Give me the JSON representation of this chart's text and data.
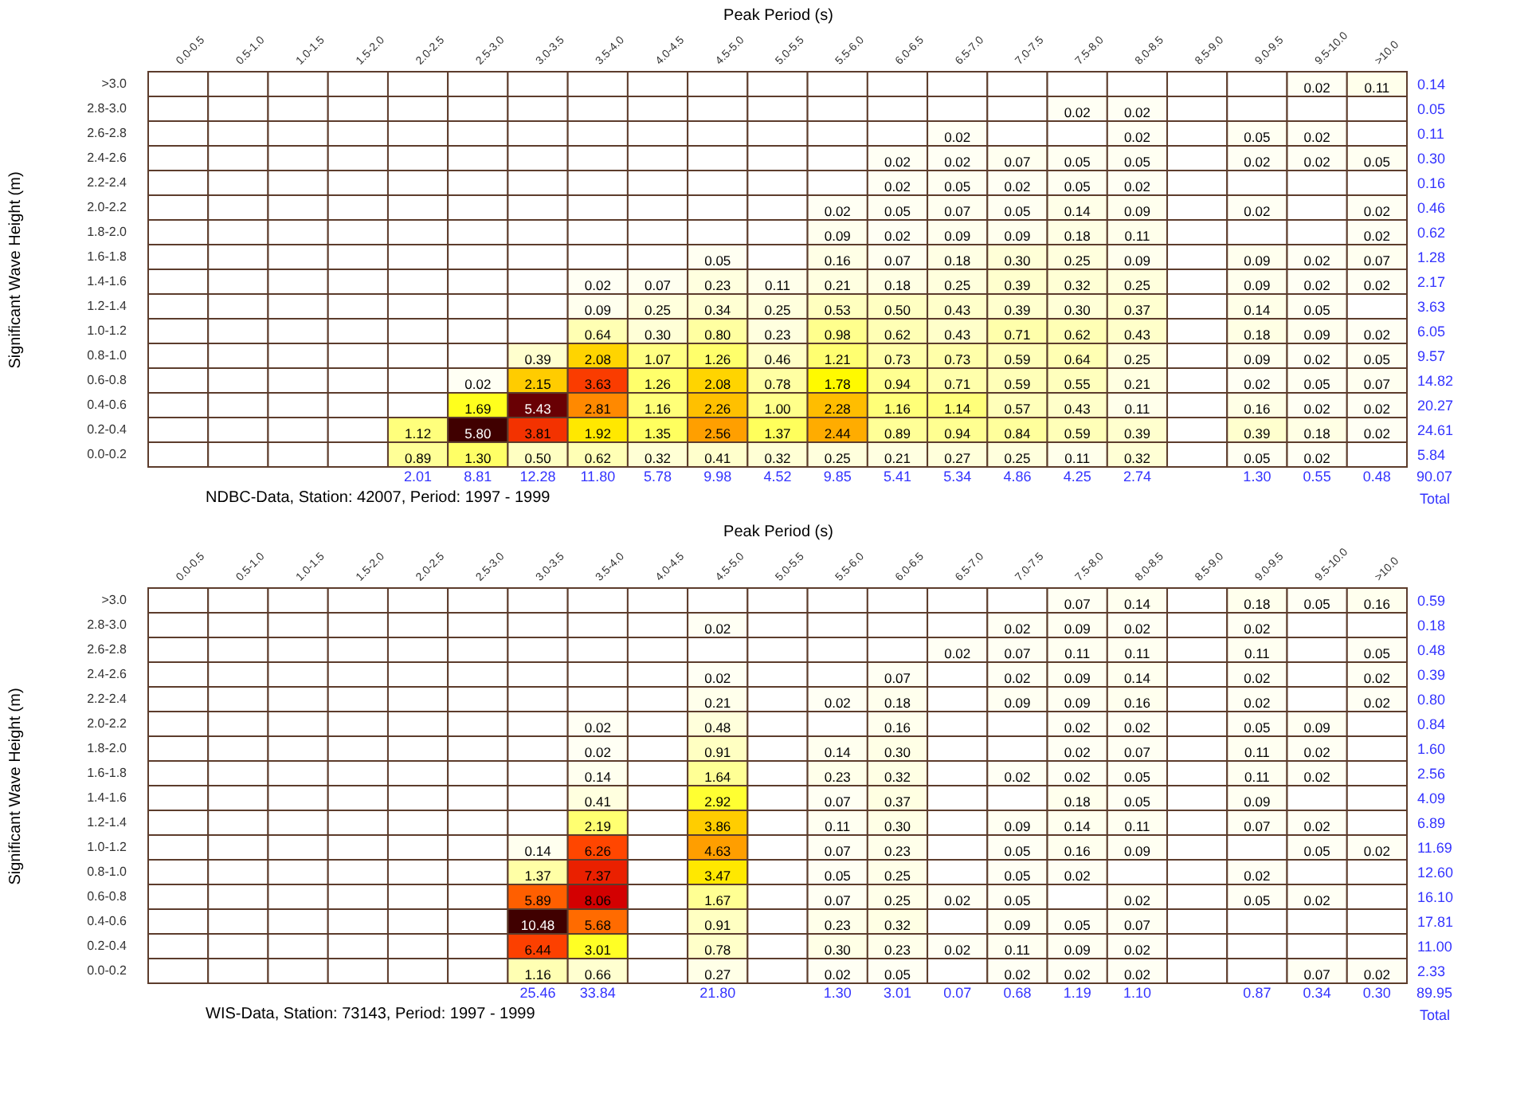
{
  "chart_data": [
    {
      "type": "heatmap",
      "xlabel": "Peak Period (s)",
      "ylabel": "Significant Wave Height (m)",
      "data_labels": true,
      "categories": [
        "0.0-0.5",
        "0.5-1.0",
        "1.0-1.5",
        "1.5-2.0",
        "2.0-2.5",
        "2.5-3.0",
        "3.0-3.5",
        "3.5-4.0",
        "4.0-4.5",
        "4.5-5.0",
        "5.0-5.5",
        "5.5-6.0",
        "6.0-6.5",
        "6.5-7.0",
        "7.0-7.5",
        "7.5-8.0",
        "8.0-8.5",
        "8.5-9.0",
        "9.0-9.5",
        "9.5-10.0",
        ">10.0"
      ],
      "y_categories": [
        ">3.0",
        "2.8-3.0",
        "2.6-2.8",
        "2.4-2.6",
        "2.2-2.4",
        "2.0-2.2",
        "1.8-2.0",
        "1.6-1.8",
        "1.4-1.6",
        "1.2-1.4",
        "1.0-1.2",
        "0.8-1.0",
        "0.6-0.8",
        "0.4-0.6",
        "0.2-0.4",
        "0.0-0.2"
      ],
      "y2_categories": [
        "0.14",
        "0.05",
        "0.11",
        "0.30",
        "0.16",
        "0.46",
        "0.62",
        "1.28",
        "2.17",
        "3.63",
        "6.05",
        "9.57",
        "14.82",
        "20.27",
        "24.61",
        "5.84"
      ],
      "cells": [
        [
          null,
          null,
          null,
          null,
          null,
          null,
          null,
          null,
          null,
          null,
          null,
          null,
          null,
          null,
          null,
          null,
          null,
          null,
          null,
          0.02,
          0.11
        ],
        [
          null,
          null,
          null,
          null,
          null,
          null,
          null,
          null,
          null,
          null,
          null,
          null,
          null,
          null,
          null,
          0.02,
          0.02,
          null,
          null,
          null,
          null
        ],
        [
          null,
          null,
          null,
          null,
          null,
          null,
          null,
          null,
          null,
          null,
          null,
          null,
          null,
          0.02,
          null,
          null,
          0.02,
          null,
          0.05,
          0.02,
          null
        ],
        [
          null,
          null,
          null,
          null,
          null,
          null,
          null,
          null,
          null,
          null,
          null,
          null,
          0.02,
          0.02,
          0.07,
          0.05,
          0.05,
          null,
          0.02,
          0.02,
          0.05
        ],
        [
          null,
          null,
          null,
          null,
          null,
          null,
          null,
          null,
          null,
          null,
          null,
          null,
          0.02,
          0.05,
          0.02,
          0.05,
          0.02,
          null,
          null,
          null,
          null
        ],
        [
          null,
          null,
          null,
          null,
          null,
          null,
          null,
          null,
          null,
          null,
          null,
          0.02,
          0.05,
          0.07,
          0.05,
          0.14,
          0.09,
          null,
          0.02,
          null,
          0.02
        ],
        [
          null,
          null,
          null,
          null,
          null,
          null,
          null,
          null,
          null,
          null,
          null,
          0.09,
          0.02,
          0.09,
          0.09,
          0.18,
          0.11,
          null,
          null,
          null,
          0.02
        ],
        [
          null,
          null,
          null,
          null,
          null,
          null,
          null,
          null,
          null,
          0.05,
          null,
          0.16,
          0.07,
          0.18,
          0.3,
          0.25,
          0.09,
          null,
          0.09,
          0.02,
          0.07
        ],
        [
          null,
          null,
          null,
          null,
          null,
          null,
          null,
          0.02,
          0.07,
          0.23,
          0.11,
          0.21,
          0.18,
          0.25,
          0.39,
          0.32,
          0.25,
          null,
          0.09,
          0.02,
          0.02
        ],
        [
          null,
          null,
          null,
          null,
          null,
          null,
          null,
          0.09,
          0.25,
          0.34,
          0.25,
          0.53,
          0.5,
          0.43,
          0.39,
          0.3,
          0.37,
          null,
          0.14,
          0.05,
          null
        ],
        [
          null,
          null,
          null,
          null,
          null,
          null,
          null,
          0.64,
          0.3,
          0.8,
          0.23,
          0.98,
          0.62,
          0.43,
          0.71,
          0.62,
          0.43,
          null,
          0.18,
          0.09,
          0.02
        ],
        [
          null,
          null,
          null,
          null,
          null,
          null,
          0.39,
          2.08,
          1.07,
          1.26,
          0.46,
          1.21,
          0.73,
          0.73,
          0.59,
          0.64,
          0.25,
          null,
          0.09,
          0.02,
          0.05
        ],
        [
          null,
          null,
          null,
          null,
          null,
          0.02,
          2.15,
          3.63,
          1.26,
          2.08,
          0.78,
          1.78,
          0.94,
          0.71,
          0.59,
          0.55,
          0.21,
          null,
          0.02,
          0.05,
          0.07
        ],
        [
          null,
          null,
          null,
          null,
          null,
          1.69,
          5.43,
          2.81,
          1.16,
          2.26,
          1.0,
          2.28,
          1.16,
          1.14,
          0.57,
          0.43,
          0.11,
          null,
          0.16,
          0.02,
          0.02
        ],
        [
          null,
          null,
          null,
          null,
          1.12,
          5.8,
          3.81,
          1.92,
          1.35,
          2.56,
          1.37,
          2.44,
          0.89,
          0.94,
          0.84,
          0.59,
          0.39,
          null,
          0.39,
          0.18,
          0.02
        ],
        [
          null,
          null,
          null,
          null,
          0.89,
          1.3,
          0.5,
          0.62,
          0.32,
          0.41,
          0.32,
          0.25,
          0.21,
          0.27,
          0.25,
          0.11,
          0.32,
          null,
          0.05,
          0.02,
          null
        ]
      ],
      "cell_labels": [
        [
          null,
          null,
          null,
          null,
          null,
          null,
          null,
          null,
          null,
          null,
          null,
          null,
          null,
          null,
          null,
          null,
          null,
          null,
          null,
          "0.02",
          "0.11"
        ],
        [
          null,
          null,
          null,
          null,
          null,
          null,
          null,
          null,
          null,
          null,
          null,
          null,
          null,
          null,
          null,
          "0.02",
          "0.02",
          null,
          null,
          null,
          null
        ],
        [
          null,
          null,
          null,
          null,
          null,
          null,
          null,
          null,
          null,
          null,
          null,
          null,
          null,
          "0.02",
          null,
          null,
          "0.02",
          null,
          "0.05",
          "0.02",
          null
        ],
        [
          null,
          null,
          null,
          null,
          null,
          null,
          null,
          null,
          null,
          null,
          null,
          null,
          "0.02",
          "0.02",
          "0.07",
          "0.05",
          "0.05",
          null,
          "0.02",
          "0.02",
          "0.05"
        ],
        [
          null,
          null,
          null,
          null,
          null,
          null,
          null,
          null,
          null,
          null,
          null,
          null,
          "0.02",
          "0.05",
          "0.02",
          "0.05",
          "0.02",
          null,
          null,
          null,
          null
        ],
        [
          null,
          null,
          null,
          null,
          null,
          null,
          null,
          null,
          null,
          null,
          null,
          "0.02",
          "0.05",
          "0.07",
          "0.05",
          "0.14",
          "0.09",
          null,
          "0.02",
          null,
          "0.02"
        ],
        [
          null,
          null,
          null,
          null,
          null,
          null,
          null,
          null,
          null,
          null,
          null,
          "0.09",
          "0.02",
          "0.09",
          "0.09",
          "0.18",
          "0.11",
          null,
          null,
          null,
          "0.02"
        ],
        [
          null,
          null,
          null,
          null,
          null,
          null,
          null,
          null,
          null,
          "0.05",
          null,
          "0.16",
          "0.07",
          "0.18",
          "0.30",
          "0.25",
          "0.09",
          null,
          "0.09",
          "0.02",
          "0.07"
        ],
        [
          null,
          null,
          null,
          null,
          null,
          null,
          null,
          "0.02",
          "0.07",
          "0.23",
          "0.11",
          "0.21",
          "0.18",
          "0.25",
          "0.39",
          "0.32",
          "0.25",
          null,
          "0.09",
          "0.02",
          "0.02"
        ],
        [
          null,
          null,
          null,
          null,
          null,
          null,
          null,
          "0.09",
          "0.25",
          "0.34",
          "0.25",
          "0.53",
          "0.50",
          "0.43",
          "0.39",
          "0.30",
          "0.37",
          null,
          "0.14",
          "0.05",
          null
        ],
        [
          null,
          null,
          null,
          null,
          null,
          null,
          null,
          "0.64",
          "0.30",
          "0.80",
          "0.23",
          "0.98",
          "0.62",
          "0.43",
          "0.71",
          "0.62",
          "0.43",
          null,
          "0.18",
          "0.09",
          "0.02"
        ],
        [
          null,
          null,
          null,
          null,
          null,
          null,
          "0.39",
          "2.08",
          "1.07",
          "1.26",
          "0.46",
          "1.21",
          "0.73",
          "0.73",
          "0.59",
          "0.64",
          "0.25",
          null,
          "0.09",
          "0.02",
          "0.05"
        ],
        [
          null,
          null,
          null,
          null,
          null,
          "0.02",
          "2.15",
          "3.63",
          "1.26",
          "2.08",
          "0.78",
          "1.78",
          "0.94",
          "0.71",
          "0.59",
          "0.55",
          "0.21",
          null,
          "0.02",
          "0.05",
          "0.07"
        ],
        [
          null,
          null,
          null,
          null,
          null,
          "1.69",
          "5.43",
          "2.81",
          "1.16",
          "2.26",
          "1.00",
          "2.28",
          "1.16",
          "1.14",
          "0.57",
          "0.43",
          "0.11",
          null,
          "0.16",
          "0.02",
          "0.02"
        ],
        [
          null,
          null,
          null,
          null,
          "1.12",
          "5.80",
          "3.81",
          "1.92",
          "1.35",
          "2.56",
          "1.37",
          "2.44",
          "0.89",
          "0.94",
          "0.84",
          "0.59",
          "0.39",
          null,
          "0.39",
          "0.18",
          "0.02"
        ],
        [
          null,
          null,
          null,
          null,
          "0.89",
          "1.30",
          "0.50",
          "0.62",
          "0.32",
          "0.41",
          "0.32",
          "0.25",
          "0.21",
          "0.27",
          "0.25",
          "0.11",
          "0.32",
          null,
          "0.05",
          "0.02",
          null
        ]
      ],
      "annotations": [
        "2.01",
        "8.81",
        "12.28",
        "11.80",
        "5.78",
        "9.98",
        "4.52",
        "9.85",
        "5.41",
        "5.34",
        "4.86",
        "4.25",
        "2.74",
        "1.30",
        "0.55",
        "0.48",
        "NDBC-Data, Station: 42007, Period: 1997 - 1999",
        "90.07",
        "Total"
      ]
    },
    {
      "type": "heatmap",
      "xlabel": "Peak Period (s)",
      "ylabel": "Significant Wave Height (m)",
      "data_labels": true,
      "categories": [
        "0.0-0.5",
        "0.5-1.0",
        "1.0-1.5",
        "1.5-2.0",
        "2.0-2.5",
        "2.5-3.0",
        "3.0-3.5",
        "3.5-4.0",
        "4.0-4.5",
        "4.5-5.0",
        "5.0-5.5",
        "5.5-6.0",
        "6.0-6.5",
        "6.5-7.0",
        "7.0-7.5",
        "7.5-8.0",
        "8.0-8.5",
        "8.5-9.0",
        "9.0-9.5",
        "9.5-10.0",
        ">10.0"
      ],
      "y_categories": [
        ">3.0",
        "2.8-3.0",
        "2.6-2.8",
        "2.4-2.6",
        "2.2-2.4",
        "2.0-2.2",
        "1.8-2.0",
        "1.6-1.8",
        "1.4-1.6",
        "1.2-1.4",
        "1.0-1.2",
        "0.8-1.0",
        "0.6-0.8",
        "0.4-0.6",
        "0.2-0.4",
        "0.0-0.2"
      ],
      "y2_categories": [
        "0.59",
        "0.18",
        "0.48",
        "0.39",
        "0.80",
        "0.84",
        "1.60",
        "2.56",
        "4.09",
        "6.89",
        "11.69",
        "12.60",
        "16.10",
        "17.81",
        "11.00",
        "2.33"
      ],
      "cells": [
        [
          null,
          null,
          null,
          null,
          null,
          null,
          null,
          null,
          null,
          null,
          null,
          null,
          null,
          null,
          null,
          0.07,
          0.14,
          null,
          0.18,
          0.05,
          0.16
        ],
        [
          null,
          null,
          null,
          null,
          null,
          null,
          null,
          null,
          null,
          0.02,
          null,
          null,
          null,
          null,
          0.02,
          0.09,
          0.02,
          null,
          0.02,
          null,
          null
        ],
        [
          null,
          null,
          null,
          null,
          null,
          null,
          null,
          null,
          null,
          null,
          null,
          null,
          null,
          0.02,
          0.07,
          0.11,
          0.11,
          null,
          0.11,
          null,
          0.05
        ],
        [
          null,
          null,
          null,
          null,
          null,
          null,
          null,
          null,
          null,
          0.02,
          null,
          null,
          0.07,
          null,
          0.02,
          0.09,
          0.14,
          null,
          0.02,
          null,
          0.02
        ],
        [
          null,
          null,
          null,
          null,
          null,
          null,
          null,
          null,
          null,
          0.21,
          null,
          0.02,
          0.18,
          null,
          0.09,
          0.09,
          0.16,
          null,
          0.02,
          null,
          0.02
        ],
        [
          null,
          null,
          null,
          null,
          null,
          null,
          null,
          0.02,
          null,
          0.48,
          null,
          null,
          0.16,
          null,
          null,
          0.02,
          0.02,
          null,
          0.05,
          0.09,
          null
        ],
        [
          null,
          null,
          null,
          null,
          null,
          null,
          null,
          0.02,
          null,
          0.91,
          null,
          0.14,
          0.3,
          null,
          null,
          0.02,
          0.07,
          null,
          0.11,
          0.02,
          null
        ],
        [
          null,
          null,
          null,
          null,
          null,
          null,
          null,
          0.14,
          null,
          1.64,
          null,
          0.23,
          0.32,
          null,
          0.02,
          0.02,
          0.05,
          null,
          0.11,
          0.02,
          null
        ],
        [
          null,
          null,
          null,
          null,
          null,
          null,
          null,
          0.41,
          null,
          2.92,
          null,
          0.07,
          0.37,
          null,
          null,
          0.18,
          0.05,
          null,
          0.09,
          null,
          null
        ],
        [
          null,
          null,
          null,
          null,
          null,
          null,
          null,
          2.19,
          null,
          3.86,
          null,
          0.11,
          0.3,
          null,
          0.09,
          0.14,
          0.11,
          null,
          0.07,
          0.02,
          null
        ],
        [
          null,
          null,
          null,
          null,
          null,
          null,
          0.14,
          6.26,
          null,
          4.63,
          null,
          0.07,
          0.23,
          null,
          0.05,
          0.16,
          0.09,
          null,
          null,
          0.05,
          0.02
        ],
        [
          null,
          null,
          null,
          null,
          null,
          null,
          1.37,
          7.37,
          null,
          3.47,
          null,
          0.05,
          0.25,
          null,
          0.05,
          0.02,
          null,
          null,
          0.02,
          null,
          null
        ],
        [
          null,
          null,
          null,
          null,
          null,
          null,
          5.89,
          8.06,
          null,
          1.67,
          null,
          0.07,
          0.25,
          0.02,
          0.05,
          null,
          0.02,
          null,
          0.05,
          0.02,
          null
        ],
        [
          null,
          null,
          null,
          null,
          null,
          null,
          10.48,
          5.68,
          null,
          0.91,
          null,
          0.23,
          0.32,
          null,
          0.09,
          0.05,
          0.07,
          null,
          null,
          null,
          null
        ],
        [
          null,
          null,
          null,
          null,
          null,
          null,
          6.44,
          3.01,
          null,
          0.78,
          null,
          0.3,
          0.23,
          0.02,
          0.11,
          0.09,
          0.02,
          null,
          null,
          null,
          null
        ],
        [
          null,
          null,
          null,
          null,
          null,
          null,
          1.16,
          0.66,
          null,
          0.27,
          null,
          0.02,
          0.05,
          null,
          0.02,
          0.02,
          0.02,
          null,
          null,
          0.07,
          0.02
        ]
      ],
      "cell_labels": [
        [
          null,
          null,
          null,
          null,
          null,
          null,
          null,
          null,
          null,
          null,
          null,
          null,
          null,
          null,
          null,
          "0.07",
          "0.14",
          null,
          "0.18",
          "0.05",
          "0.16"
        ],
        [
          null,
          null,
          null,
          null,
          null,
          null,
          null,
          null,
          null,
          "0.02",
          null,
          null,
          null,
          null,
          "0.02",
          "0.09",
          "0.02",
          null,
          "0.02",
          null,
          null
        ],
        [
          null,
          null,
          null,
          null,
          null,
          null,
          null,
          null,
          null,
          null,
          null,
          null,
          null,
          "0.02",
          "0.07",
          "0.11",
          "0.11",
          null,
          "0.11",
          null,
          "0.05"
        ],
        [
          null,
          null,
          null,
          null,
          null,
          null,
          null,
          null,
          null,
          "0.02",
          null,
          null,
          "0.07",
          null,
          "0.02",
          "0.09",
          "0.14",
          null,
          "0.02",
          null,
          "0.02"
        ],
        [
          null,
          null,
          null,
          null,
          null,
          null,
          null,
          null,
          null,
          "0.21",
          null,
          "0.02",
          "0.18",
          null,
          "0.09",
          "0.09",
          "0.16",
          null,
          "0.02",
          null,
          "0.02"
        ],
        [
          null,
          null,
          null,
          null,
          null,
          null,
          null,
          "0.02",
          null,
          "0.48",
          null,
          null,
          "0.16",
          null,
          null,
          "0.02",
          "0.02",
          null,
          "0.05",
          "0.09",
          null
        ],
        [
          null,
          null,
          null,
          null,
          null,
          null,
          null,
          "0.02",
          null,
          "0.91",
          null,
          "0.14",
          "0.30",
          null,
          null,
          "0.02",
          "0.07",
          null,
          "0.11",
          "0.02",
          null
        ],
        [
          null,
          null,
          null,
          null,
          null,
          null,
          null,
          "0.14",
          null,
          "1.64",
          null,
          "0.23",
          "0.32",
          null,
          "0.02",
          "0.02",
          "0.05",
          null,
          "0.11",
          "0.02",
          null
        ],
        [
          null,
          null,
          null,
          null,
          null,
          null,
          null,
          "0.41",
          null,
          "2.92",
          null,
          "0.07",
          "0.37",
          null,
          null,
          "0.18",
          "0.05",
          null,
          "0.09",
          null,
          null
        ],
        [
          null,
          null,
          null,
          null,
          null,
          null,
          null,
          "2.19",
          null,
          "3.86",
          null,
          "0.11",
          "0.30",
          null,
          "0.09",
          "0.14",
          "0.11",
          null,
          "0.07",
          "0.02",
          null
        ],
        [
          null,
          null,
          null,
          null,
          null,
          null,
          "0.14",
          "6.26",
          null,
          "4.63",
          null,
          "0.07",
          "0.23",
          null,
          "0.05",
          "0.16",
          "0.09",
          null,
          null,
          "0.05",
          "0.02"
        ],
        [
          null,
          null,
          null,
          null,
          null,
          null,
          "1.37",
          "7.37",
          null,
          "3.47",
          null,
          "0.05",
          "0.25",
          null,
          "0.05",
          "0.02",
          null,
          null,
          "0.02",
          null,
          null
        ],
        [
          null,
          null,
          null,
          null,
          null,
          null,
          "5.89",
          "8.06",
          null,
          "1.67",
          null,
          "0.07",
          "0.25",
          "0.02",
          "0.05",
          null,
          "0.02",
          null,
          "0.05",
          "0.02",
          null
        ],
        [
          null,
          null,
          null,
          null,
          null,
          null,
          "10.48",
          "5.68",
          null,
          "0.91",
          null,
          "0.23",
          "0.32",
          null,
          "0.09",
          "0.05",
          "0.07",
          null,
          null,
          null,
          null
        ],
        [
          null,
          null,
          null,
          null,
          null,
          null,
          "6.44",
          "3.01",
          null,
          "0.78",
          null,
          "0.30",
          "0.23",
          "0.02",
          "0.11",
          "0.09",
          "0.02",
          null,
          null,
          null,
          null
        ],
        [
          null,
          null,
          null,
          null,
          null,
          null,
          "1.16",
          "0.66",
          null,
          "0.27",
          null,
          "0.02",
          "0.05",
          null,
          "0.02",
          "0.02",
          "0.02",
          null,
          null,
          "0.07",
          "0.02"
        ]
      ],
      "annotations": [
        "25.46",
        "33.84",
        "21.80",
        "1.30",
        "3.01",
        "0.07",
        "0.68",
        "1.19",
        "1.10",
        "0.87",
        "0.34",
        "0.30",
        "WIS-Data, Station: 73143, Period: 1997 - 1999",
        "89.95",
        "Total"
      ]
    }
  ]
}
